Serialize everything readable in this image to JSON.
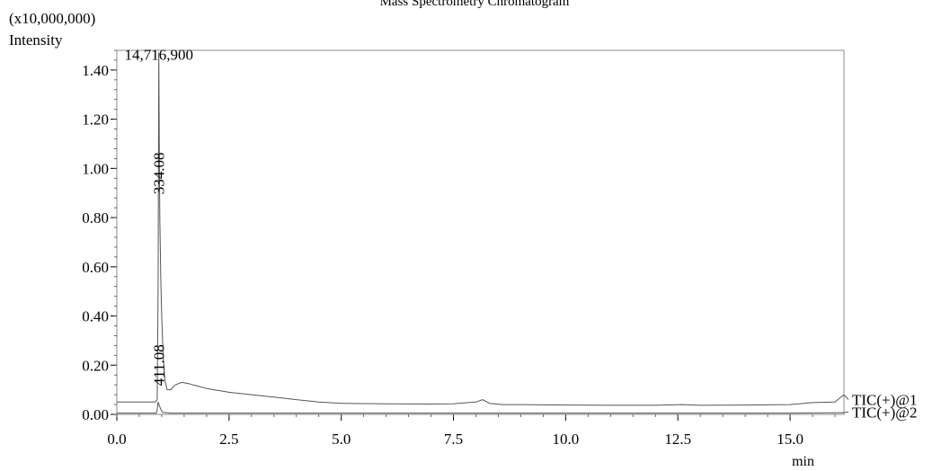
{
  "chart_data": {
    "type": "line",
    "title": "Mass Spectrometry Chromatogram",
    "y_multiplier_label": "(x10,000,000)",
    "ylabel": "Intensity",
    "xlabel": "min",
    "xlim": [
      0.0,
      16.2
    ],
    "ylim": [
      0.0,
      1.48
    ],
    "x_ticks": [
      0.0,
      2.5,
      5.0,
      7.5,
      10.0,
      12.5,
      15.0
    ],
    "x_tick_labels": [
      "0.0",
      "2.5",
      "5.0",
      "7.5",
      "10.0",
      "12.5",
      "15.0"
    ],
    "y_ticks": [
      0.0,
      0.2,
      0.4,
      0.6,
      0.8,
      1.0,
      1.2,
      1.4
    ],
    "y_tick_labels": [
      "0.00",
      "0.20",
      "0.40",
      "0.60",
      "0.80",
      "1.00",
      "1.20",
      "1.40"
    ],
    "grid": false,
    "series": [
      {
        "name": "TIC(+)@1",
        "x": [
          0.0,
          0.85,
          0.9,
          0.92,
          0.935,
          0.95,
          0.96,
          0.98,
          1.0,
          1.03,
          1.07,
          1.12,
          1.2,
          1.3,
          1.45,
          1.6,
          1.8,
          2.0,
          2.5,
          3.0,
          3.5,
          4.0,
          4.5,
          5.0,
          6.0,
          7.0,
          7.5,
          8.0,
          8.15,
          8.3,
          8.6,
          9.0,
          10.0,
          11.0,
          12.0,
          12.6,
          13.0,
          14.0,
          15.0,
          15.5,
          16.0,
          16.2
        ],
        "values": [
          0.05,
          0.05,
          0.06,
          0.5,
          1.47,
          0.98,
          0.78,
          0.55,
          0.4,
          0.25,
          0.14,
          0.1,
          0.1,
          0.12,
          0.13,
          0.125,
          0.115,
          0.105,
          0.09,
          0.08,
          0.07,
          0.06,
          0.05,
          0.045,
          0.043,
          0.042,
          0.043,
          0.05,
          0.06,
          0.045,
          0.04,
          0.04,
          0.038,
          0.037,
          0.037,
          0.04,
          0.037,
          0.038,
          0.04,
          0.048,
          0.05,
          0.08
        ]
      },
      {
        "name": "TIC(+)@2",
        "x": [
          0.0,
          0.88,
          0.9,
          0.92,
          0.95,
          0.98,
          1.02,
          1.2,
          2.0,
          5.0,
          10.0,
          15.0,
          16.2
        ],
        "values": [
          0.005,
          0.005,
          0.02,
          0.05,
          0.035,
          0.02,
          0.008,
          0.005,
          0.005,
          0.005,
          0.005,
          0.005,
          0.007
        ]
      }
    ],
    "annotations": [
      {
        "text": "14,716,900",
        "x": 0.935,
        "y": 1.47,
        "orientation": "horizontal"
      },
      {
        "text": "334.08",
        "x": 0.935,
        "y": 0.88,
        "orientation": "vertical"
      },
      {
        "text": "411.08",
        "x": 0.935,
        "y": 0.05,
        "orientation": "vertical"
      }
    ]
  }
}
